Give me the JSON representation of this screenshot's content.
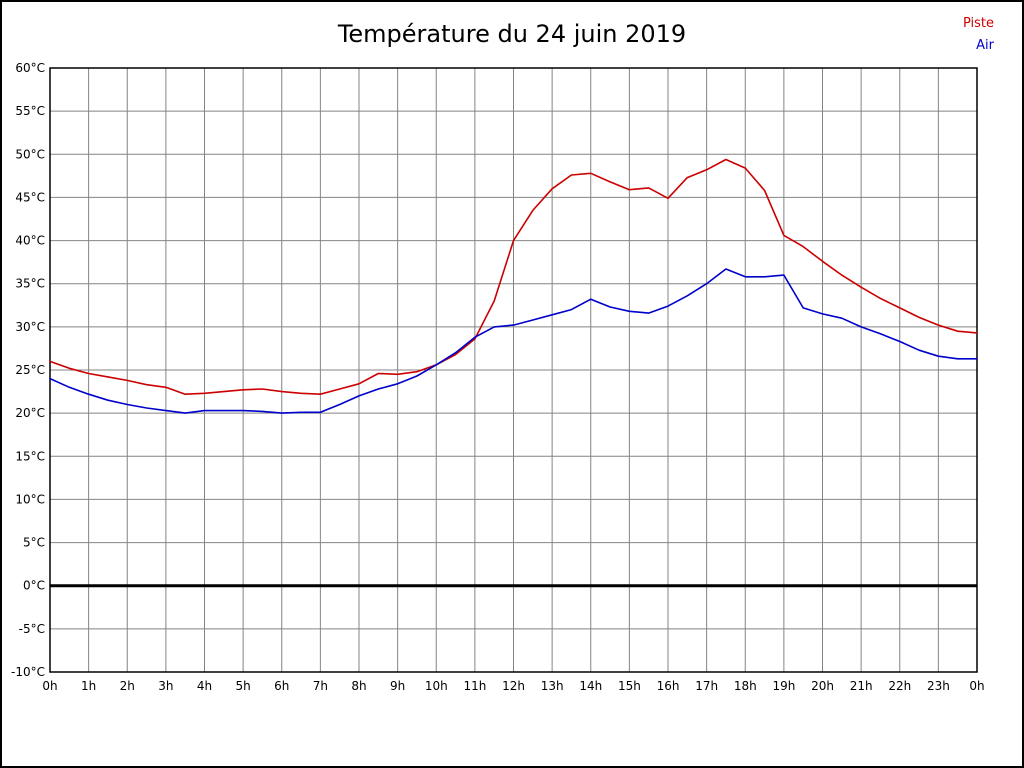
{
  "chart_data": {
    "type": "line",
    "title": "Température du 24 juin 2019",
    "xlim": [
      0,
      24
    ],
    "ylim": [
      -10,
      60
    ],
    "grid": true,
    "grid_color": "#848484",
    "axis_color": "#000000",
    "legend_position": "top-right",
    "zero_line": {
      "value": 0,
      "color": "#000000",
      "width": 3
    },
    "x_tick_labels": [
      "0h",
      "1h",
      "2h",
      "3h",
      "4h",
      "5h",
      "6h",
      "7h",
      "8h",
      "9h",
      "10h",
      "11h",
      "12h",
      "13h",
      "14h",
      "15h",
      "16h",
      "17h",
      "18h",
      "19h",
      "20h",
      "21h",
      "22h",
      "23h",
      "0h"
    ],
    "y_tick_labels": [
      "60°C",
      "55°C",
      "50°C",
      "45°C",
      "40°C",
      "35°C",
      "30°C",
      "25°C",
      "20°C",
      "15°C",
      "10°C",
      "5°C",
      "0°C",
      "-5°C",
      "-10°C"
    ],
    "y_tick_values": [
      60,
      55,
      50,
      45,
      40,
      35,
      30,
      25,
      20,
      15,
      10,
      5,
      0,
      -5,
      -10
    ],
    "series": [
      {
        "name": "Piste",
        "color": "#cc0000",
        "points": [
          [
            0,
            26.0
          ],
          [
            0.5,
            25.2
          ],
          [
            1,
            24.6
          ],
          [
            1.5,
            24.2
          ],
          [
            2,
            23.8
          ],
          [
            2.5,
            23.3
          ],
          [
            3,
            23.0
          ],
          [
            3.5,
            22.2
          ],
          [
            4,
            22.3
          ],
          [
            4.5,
            22.5
          ],
          [
            5,
            22.7
          ],
          [
            5.5,
            22.8
          ],
          [
            6,
            22.5
          ],
          [
            6.5,
            22.3
          ],
          [
            7,
            22.2
          ],
          [
            7.5,
            22.8
          ],
          [
            8,
            23.4
          ],
          [
            8.5,
            24.6
          ],
          [
            9,
            24.5
          ],
          [
            9.5,
            24.8
          ],
          [
            10,
            25.6
          ],
          [
            10.5,
            26.8
          ],
          [
            11,
            28.6
          ],
          [
            11.5,
            33.0
          ],
          [
            12,
            40.0
          ],
          [
            12.5,
            43.5
          ],
          [
            13,
            46.0
          ],
          [
            13.5,
            47.6
          ],
          [
            14,
            47.8
          ],
          [
            14.5,
            46.8
          ],
          [
            15,
            45.9
          ],
          [
            15.5,
            46.1
          ],
          [
            16,
            44.9
          ],
          [
            16.5,
            47.3
          ],
          [
            17,
            48.2
          ],
          [
            17.5,
            49.4
          ],
          [
            18,
            48.4
          ],
          [
            18.5,
            45.8
          ],
          [
            19,
            40.6
          ],
          [
            19.5,
            39.3
          ],
          [
            20,
            37.6
          ],
          [
            20.5,
            36.0
          ],
          [
            21,
            34.6
          ],
          [
            21.5,
            33.3
          ],
          [
            22,
            32.2
          ],
          [
            22.5,
            31.1
          ],
          [
            23,
            30.2
          ],
          [
            23.5,
            29.5
          ],
          [
            24,
            29.3
          ]
        ]
      },
      {
        "name": "Air",
        "color": "#0000cc",
        "points": [
          [
            0,
            24.0
          ],
          [
            0.5,
            23.0
          ],
          [
            1,
            22.2
          ],
          [
            1.5,
            21.5
          ],
          [
            2,
            21.0
          ],
          [
            2.5,
            20.6
          ],
          [
            3,
            20.3
          ],
          [
            3.5,
            20.0
          ],
          [
            4,
            20.3
          ],
          [
            4.5,
            20.3
          ],
          [
            5,
            20.3
          ],
          [
            5.5,
            20.2
          ],
          [
            6,
            20.0
          ],
          [
            6.5,
            20.1
          ],
          [
            7,
            20.1
          ],
          [
            7.5,
            21.0
          ],
          [
            8,
            22.0
          ],
          [
            8.5,
            22.8
          ],
          [
            9,
            23.4
          ],
          [
            9.5,
            24.3
          ],
          [
            10,
            25.6
          ],
          [
            10.5,
            27.0
          ],
          [
            11,
            28.8
          ],
          [
            11.5,
            30.0
          ],
          [
            12,
            30.2
          ],
          [
            12.5,
            30.8
          ],
          [
            13,
            31.4
          ],
          [
            13.5,
            32.0
          ],
          [
            14,
            33.2
          ],
          [
            14.5,
            32.3
          ],
          [
            15,
            31.8
          ],
          [
            15.5,
            31.6
          ],
          [
            16,
            32.4
          ],
          [
            16.5,
            33.6
          ],
          [
            17,
            35.0
          ],
          [
            17.5,
            36.7
          ],
          [
            18,
            35.8
          ],
          [
            18.5,
            35.8
          ],
          [
            19,
            36.0
          ],
          [
            19.5,
            32.2
          ],
          [
            20,
            31.5
          ],
          [
            20.5,
            31.0
          ],
          [
            21,
            30.0
          ],
          [
            21.5,
            29.2
          ],
          [
            22,
            28.3
          ],
          [
            22.5,
            27.3
          ],
          [
            23,
            26.6
          ],
          [
            23.5,
            26.3
          ],
          [
            24,
            26.3
          ]
        ]
      }
    ]
  }
}
